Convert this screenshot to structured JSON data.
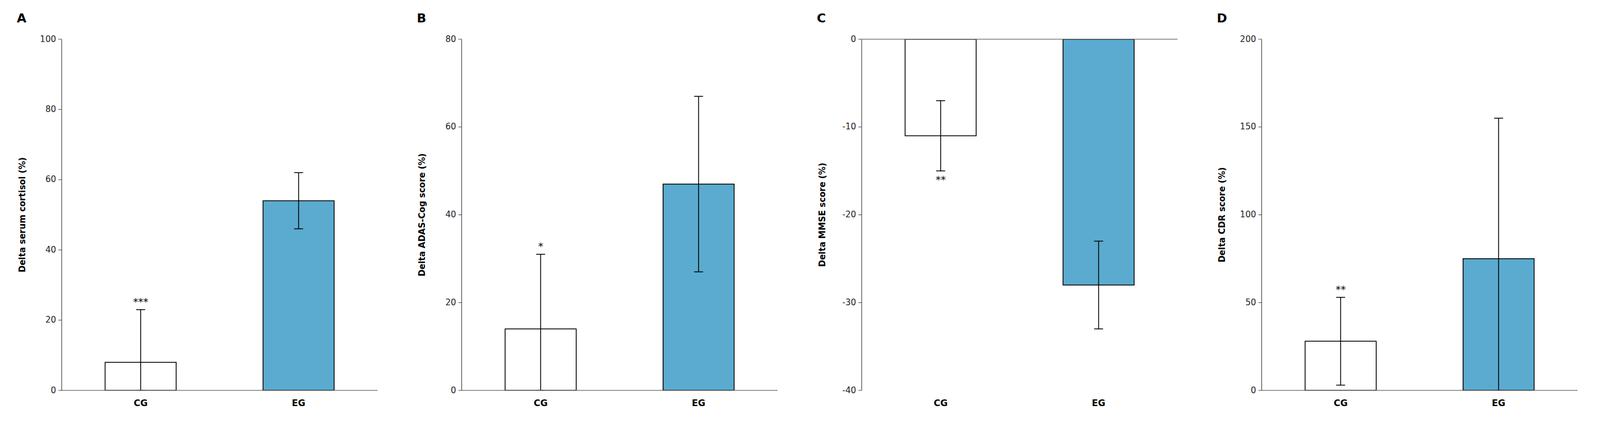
{
  "chart_data": [
    {
      "type": "bar",
      "title": "A",
      "ylabel": "Delta serum cortisol (%)",
      "categories": [
        "CG",
        "EG"
      ],
      "values": [
        8.0,
        54.0
      ],
      "errors_up": [
        15.0,
        8.0
      ],
      "errors_down": [
        8.0,
        8.0
      ],
      "colors": [
        "white",
        "#5aabcf"
      ],
      "ylim": [
        0,
        100
      ],
      "yticks": [
        0,
        20,
        40,
        60,
        80,
        100
      ],
      "annotations": [
        {
          "text": "***",
          "category": "CG"
        }
      ]
    },
    {
      "type": "bar",
      "title": "B",
      "ylabel": "Delta ADAS-Cog score (%)",
      "categories": [
        "CG",
        "EG"
      ],
      "values": [
        14.0,
        47.0
      ],
      "errors_up": [
        17.0,
        20.0
      ],
      "errors_down": [
        14.0,
        20.0
      ],
      "colors": [
        "white",
        "#5aabcf"
      ],
      "ylim": [
        0,
        80
      ],
      "yticks": [
        0,
        20,
        40,
        60,
        80
      ],
      "annotations": [
        {
          "text": "*",
          "category": "CG"
        }
      ]
    },
    {
      "type": "bar",
      "title": "C",
      "ylabel": "Delta MMSE score (%)",
      "categories": [
        "CG",
        "EG"
      ],
      "values": [
        -11.0,
        -28.0
      ],
      "errors_up": [
        4.0,
        5.0
      ],
      "errors_down": [
        4.0,
        5.0
      ],
      "colors": [
        "white",
        "#5aabcf"
      ],
      "ylim": [
        -40,
        0
      ],
      "yticks": [
        -40,
        -30,
        -20,
        -10,
        0
      ],
      "annotations": [
        {
          "text": "**",
          "category": "CG"
        }
      ]
    },
    {
      "type": "bar",
      "title": "D",
      "ylabel": "Delta CDR score (%)",
      "categories": [
        "CG",
        "EG"
      ],
      "values": [
        28.0,
        75.0
      ],
      "errors_up": [
        25.0,
        80.0
      ],
      "errors_down": [
        25.0,
        75.0
      ],
      "colors": [
        "white",
        "#5aabcf"
      ],
      "ylim": [
        0,
        200
      ],
      "yticks": [
        0,
        50,
        100,
        150,
        200
      ],
      "annotations": [
        {
          "text": "**",
          "category": "CG"
        }
      ]
    }
  ]
}
